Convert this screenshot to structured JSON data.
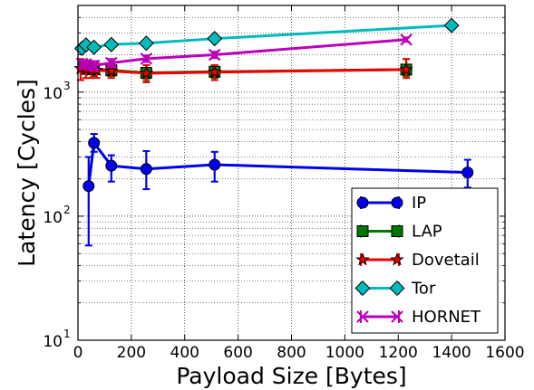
{
  "chart_data": {
    "type": "line",
    "title": "",
    "xlabel": "Payload Size [Bytes]",
    "ylabel": "Latency [Cycles]",
    "xlim": [
      0,
      1600
    ],
    "ylim": [
      10,
      5000
    ],
    "yscale": "log",
    "grid": true,
    "legend_position": "lower-right",
    "x_ticks": [
      0,
      200,
      400,
      600,
      800,
      1000,
      1200,
      1400,
      1600
    ],
    "x_tick_labels": [
      "0",
      "200",
      "400",
      "600",
      "800",
      "1000",
      "1200",
      "1400",
      "1600"
    ],
    "y_ticks": [
      10,
      100,
      1000
    ],
    "y_tick_labels": [
      "10",
      "10",
      "10"
    ],
    "y_tick_exponents": [
      "1",
      "2",
      "3"
    ],
    "series": [
      {
        "name": "IP",
        "color": "#0000ee",
        "marker": "circle",
        "points": [
          {
            "x": 40,
            "y": 175,
            "lo": 58,
            "hi": 300
          },
          {
            "x": 60,
            "y": 390,
            "lo": 330,
            "hi": 460
          },
          {
            "x": 125,
            "y": 255,
            "lo": 190,
            "hi": 310
          },
          {
            "x": 256,
            "y": 240,
            "lo": 165,
            "hi": 335
          },
          {
            "x": 512,
            "y": 260,
            "lo": 190,
            "hi": 330
          },
          {
            "x": 1460,
            "y": 225,
            "lo": 170,
            "hi": 285
          }
        ]
      },
      {
        "name": "LAP",
        "color": "#007700",
        "marker": "square",
        "points": [
          {
            "x": 20,
            "y": 1600,
            "lo": 1400,
            "hi": 1800
          },
          {
            "x": 40,
            "y": 1560,
            "lo": 1400,
            "hi": 1750
          },
          {
            "x": 60,
            "y": 1530,
            "lo": 1350,
            "hi": 1700
          },
          {
            "x": 125,
            "y": 1500,
            "lo": 1350,
            "hi": 1650
          },
          {
            "x": 256,
            "y": 1430,
            "lo": 1250,
            "hi": 1650
          },
          {
            "x": 512,
            "y": 1460,
            "lo": 1300,
            "hi": 1650
          },
          {
            "x": 1230,
            "y": 1520,
            "lo": 1350,
            "hi": 1850
          }
        ]
      },
      {
        "name": "Dovetail",
        "color": "#ee0000",
        "marker": "star",
        "points": [
          {
            "x": 10,
            "y": 1550,
            "lo": 1250,
            "hi": 1850
          },
          {
            "x": 30,
            "y": 1530,
            "lo": 1300,
            "hi": 1800
          },
          {
            "x": 50,
            "y": 1510,
            "lo": 1300,
            "hi": 1750
          },
          {
            "x": 70,
            "y": 1500,
            "lo": 1300,
            "hi": 1700
          },
          {
            "x": 125,
            "y": 1480,
            "lo": 1300,
            "hi": 1680
          },
          {
            "x": 256,
            "y": 1420,
            "lo": 1200,
            "hi": 1650
          },
          {
            "x": 512,
            "y": 1450,
            "lo": 1250,
            "hi": 1650
          },
          {
            "x": 1230,
            "y": 1520,
            "lo": 1300,
            "hi": 1850
          }
        ]
      },
      {
        "name": "Tor",
        "color": "#00bbbb",
        "marker": "diamond",
        "points": [
          {
            "x": 15,
            "y": 2250
          },
          {
            "x": 30,
            "y": 2400
          },
          {
            "x": 60,
            "y": 2300
          },
          {
            "x": 125,
            "y": 2420
          },
          {
            "x": 256,
            "y": 2480
          },
          {
            "x": 512,
            "y": 2700
          },
          {
            "x": 1400,
            "y": 3450
          }
        ]
      },
      {
        "name": "HORNET",
        "color": "#bb00bb",
        "marker": "cross",
        "points": [
          {
            "x": 15,
            "y": 1700,
            "lo": 1600,
            "hi": 1800
          },
          {
            "x": 30,
            "y": 1680,
            "lo": 1550,
            "hi": 1800
          },
          {
            "x": 60,
            "y": 1640,
            "lo": 1500,
            "hi": 1780
          },
          {
            "x": 125,
            "y": 1720,
            "lo": 1600,
            "hi": 1850
          },
          {
            "x": 256,
            "y": 1860,
            "lo": 1750,
            "hi": 1980
          },
          {
            "x": 512,
            "y": 2000,
            "lo": 1880,
            "hi": 2120
          },
          {
            "x": 1230,
            "y": 2650,
            "lo": 2550,
            "hi": 2760
          }
        ]
      }
    ]
  }
}
